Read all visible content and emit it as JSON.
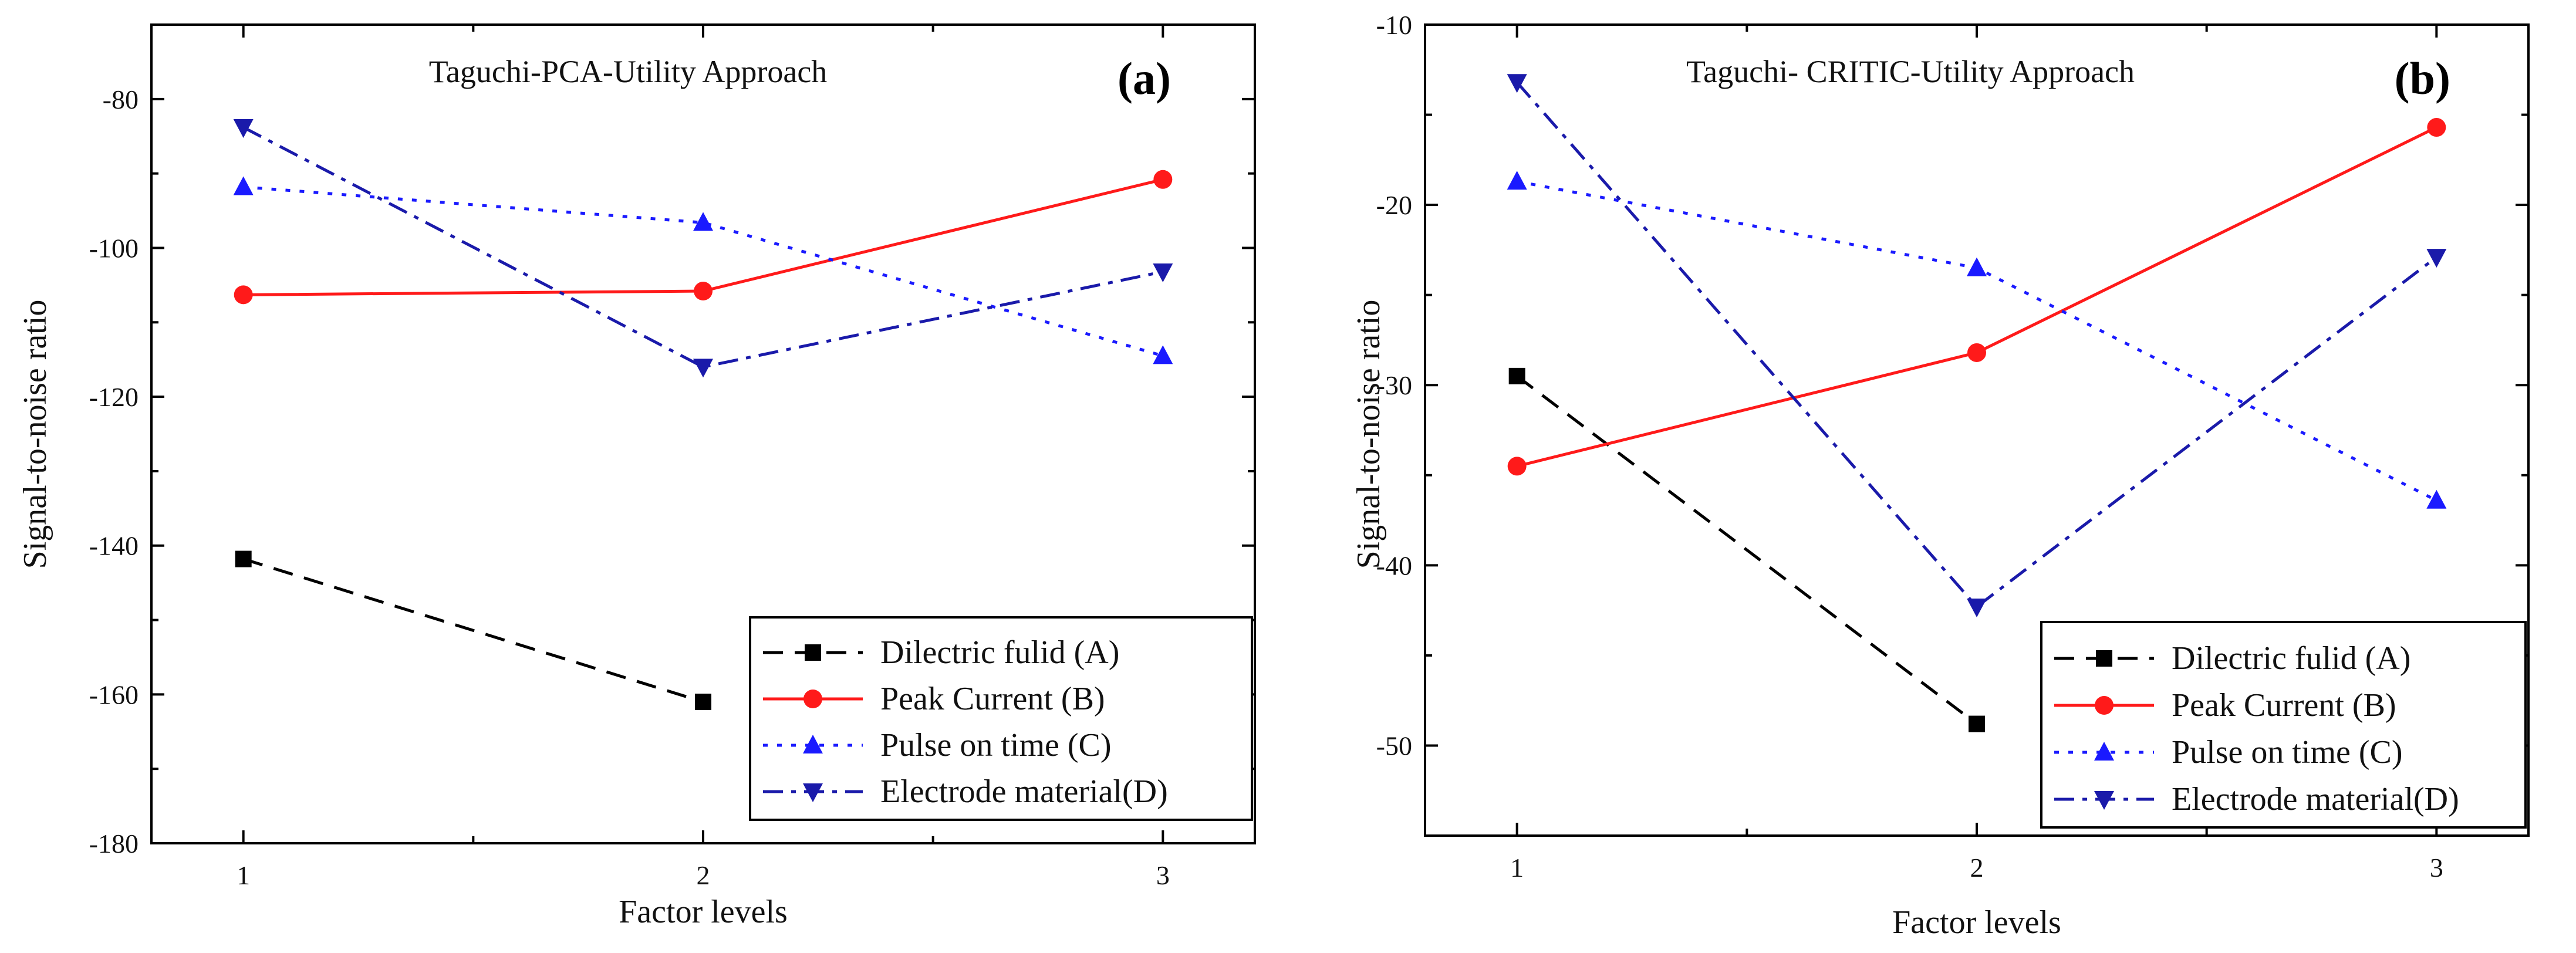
{
  "chart_data": [
    {
      "type": "line",
      "panel_label": "(a)",
      "title": "Taguchi-PCA-Utility Approach",
      "xlabel": "Factor levels",
      "ylabel": "Signal-to-noise ratio",
      "xlim": [
        0.8,
        3.2
      ],
      "ylim": [
        -180,
        -70
      ],
      "xticks": [
        1,
        2,
        3
      ],
      "yticks": [
        -180,
        -160,
        -140,
        -120,
        -100,
        -80
      ],
      "legend_position": "bottom-right",
      "series": [
        {
          "name": "Dilectric fulid (A)",
          "color": "#000000",
          "marker": "square",
          "dash": "dashed",
          "x": [
            1,
            2
          ],
          "values": [
            -141.8,
            -161
          ]
        },
        {
          "name": "Peak Current (B)",
          "color": "#ff1a1a",
          "marker": "circle",
          "dash": "solid",
          "x": [
            1,
            2,
            3
          ],
          "values": [
            -106.3,
            -105.8,
            -90.8
          ]
        },
        {
          "name": "Pulse on time (C)",
          "color": "#1a1aff",
          "marker": "triangle-up",
          "dash": "dotted",
          "x": [
            1,
            2,
            3
          ],
          "values": [
            -91.8,
            -96.6,
            -114.5
          ]
        },
        {
          "name": "Electrode material(D)",
          "color": "#1a1aaa",
          "marker": "triangle-down",
          "dash": "dashdot",
          "x": [
            1,
            2,
            3
          ],
          "values": [
            -83.8,
            -116,
            -103.2
          ]
        }
      ]
    },
    {
      "type": "line",
      "panel_label": "(b)",
      "title": "Taguchi- CRITIC-Utility Approach",
      "xlabel": "Factor levels",
      "ylabel": "Signal-to-noise ratio",
      "xlim": [
        0.8,
        3.2
      ],
      "ylim": [
        -55,
        -10
      ],
      "xticks": [
        1,
        2,
        3
      ],
      "yticks": [
        -50,
        -40,
        -30,
        -20,
        -10
      ],
      "legend_position": "bottom-right",
      "series": [
        {
          "name": "Dilectric fulid (A)",
          "color": "#000000",
          "marker": "square",
          "dash": "dashed",
          "x": [
            1,
            2
          ],
          "values": [
            -29.5,
            -48.8
          ]
        },
        {
          "name": "Peak Current (B)",
          "color": "#ff1a1a",
          "marker": "circle",
          "dash": "solid",
          "x": [
            1,
            2,
            3
          ],
          "values": [
            -34.5,
            -28.2,
            -15.7
          ]
        },
        {
          "name": "Pulse on time (C)",
          "color": "#1a1aff",
          "marker": "triangle-up",
          "dash": "dotted",
          "x": [
            1,
            2,
            3
          ],
          "values": [
            -18.7,
            -23.5,
            -36.4
          ]
        },
        {
          "name": "Electrode material(D)",
          "color": "#1a1aaa",
          "marker": "triangle-down",
          "dash": "dashdot",
          "x": [
            1,
            2,
            3
          ],
          "values": [
            -13.2,
            -42.3,
            -22.9
          ]
        }
      ]
    }
  ]
}
